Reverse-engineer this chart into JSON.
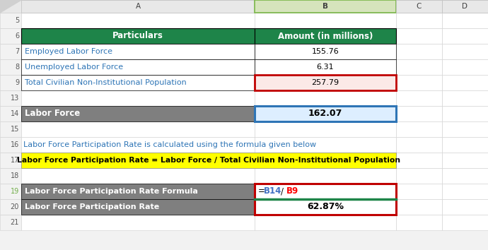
{
  "header_row": {
    "particulars": "Particulars",
    "amount": "Amount (in millions)"
  },
  "data_rows": [
    {
      "label": "Employed Labor Force",
      "value": "155.76"
    },
    {
      "label": "Unemployed Labor Force",
      "value": "6.31"
    },
    {
      "label": "Total Civilian Non-Institutional Population",
      "value": "257.79"
    }
  ],
  "labor_force_label": "Labor Force",
  "labor_force_value": "162.07",
  "note_row": "Labor Force Participation Rate is calculated using the formula given below",
  "formula_row": "Labor Force Participation Rate = Labor Force / Total Civilian Non-Institutional Population",
  "formula_label": "Labor Force Participation Rate Formula",
  "rate_label": "Labor Force Participation Rate",
  "rate_value": "62.87%",
  "green_header_color": "#1E8449",
  "gray_row_color": "#7F7F7F",
  "yellow_bg": "#FFFF00",
  "blue_text": "#2E75B6",
  "pink_bg": "#FBE9E7",
  "light_blue_bg": "#DDEEFF",
  "grid_line_color": "#D0D0D0",
  "row_label_color": "#595959",
  "formula_b14_color": "#4472C4",
  "formula_b9_color": "#FF0000",
  "col_header_bg": "#E8E8E8",
  "col_header_selected_bg": "#D6E4BC",
  "col_header_selected_border": "#7AB648",
  "row_nums": [
    5,
    6,
    7,
    8,
    9,
    13,
    14,
    15,
    16,
    17,
    18,
    19,
    20,
    21
  ],
  "row_num_19_color": "#70AD47"
}
